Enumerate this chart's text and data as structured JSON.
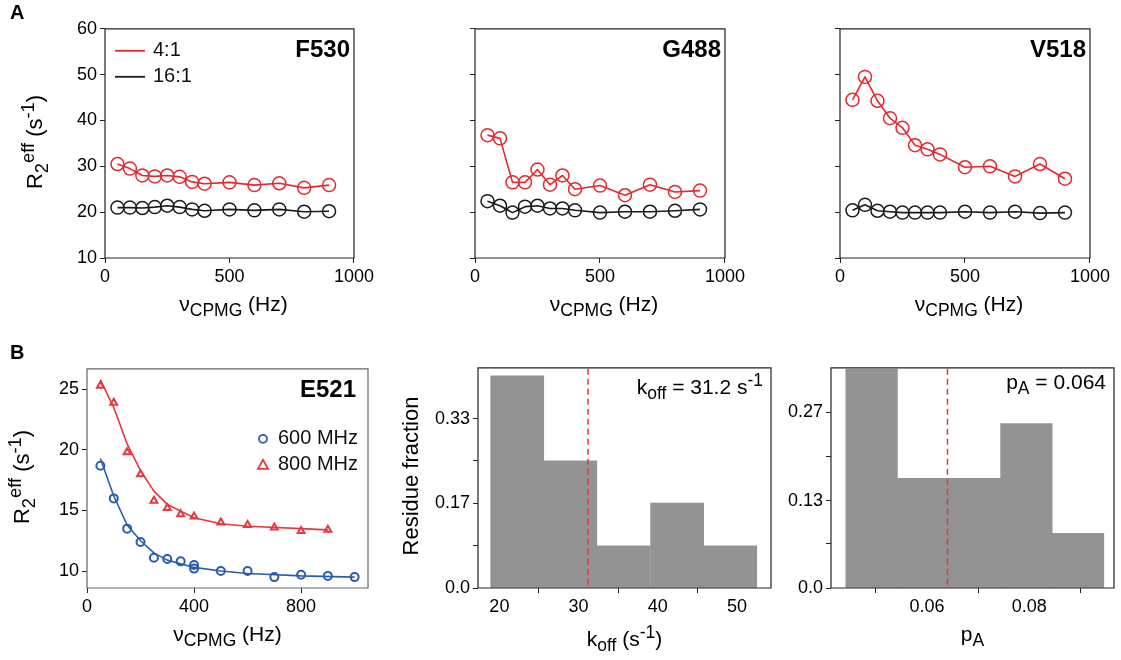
{
  "chart_data": [
    {
      "type": "line",
      "title": "F530",
      "ylabel": "R$_{2}$$^{eff}$ (s$^{-1}$)",
      "xlabel": "ν$_{CPMG}$ (Hz)",
      "annotations": [
        "A"
      ],
      "marker": "circle",
      "legend": "top left",
      "xlim": [
        0,
        1000
      ],
      "xticks": [
        0,
        500,
        1000
      ],
      "ylim": [
        10,
        60
      ],
      "yticks": [
        10,
        20,
        30,
        40,
        50,
        60
      ],
      "x": [
        50,
        100,
        150,
        200,
        250,
        300,
        350,
        400,
        500,
        600,
        700,
        800,
        900
      ],
      "series": [
        {
          "name": "4:1",
          "color": "#e8262d",
          "values": [
            30.5,
            29.5,
            28,
            27.8,
            28,
            27.7,
            26.6,
            26.2,
            26.5,
            25.9,
            26.3,
            25.3,
            25.9
          ]
        },
        {
          "name": "16:1",
          "color": "#1a1a1a",
          "values": [
            21,
            21,
            20.9,
            21.1,
            21.4,
            21.1,
            20.6,
            20.3,
            20.6,
            20.4,
            20.6,
            20.1,
            20.2
          ]
        }
      ]
    },
    {
      "type": "line",
      "title": "G488",
      "xlabel": "ν$_{CPMG}$ (Hz)",
      "marker": "circle",
      "tick_labels": "x",
      "xlim": [
        0,
        1000
      ],
      "xticks": [
        0,
        500,
        1000
      ],
      "ylim": [
        10,
        60
      ],
      "yticks": [
        10,
        20,
        30,
        40,
        50,
        60
      ],
      "x": [
        50,
        100,
        150,
        200,
        250,
        300,
        350,
        400,
        500,
        600,
        700,
        800,
        900
      ],
      "series": [
        {
          "color": "#e8262d",
          "values": [
            36.8,
            36.1,
            26.5,
            26.5,
            29.3,
            26,
            28,
            25,
            25.8,
            23.7,
            26,
            24.4,
            24.7
          ]
        },
        {
          "color": "#1a1a1a",
          "values": [
            22.4,
            21.4,
            19.9,
            21.2,
            21.4,
            20.8,
            20.8,
            20.4,
            19.9,
            20.1,
            20.1,
            20.3,
            20.6
          ]
        }
      ]
    },
    {
      "type": "line",
      "title": "V518",
      "xlabel": "ν$_{CPMG}$ (Hz)",
      "marker": "circle",
      "tick_labels": "x",
      "xlim": [
        0,
        1000
      ],
      "xticks": [
        0,
        500,
        1000
      ],
      "ylim": [
        10,
        60
      ],
      "yticks": [
        10,
        20,
        30,
        40,
        50,
        60
      ],
      "x": [
        50,
        100,
        150,
        200,
        250,
        300,
        350,
        400,
        500,
        600,
        700,
        800,
        900
      ],
      "series": [
        {
          "color": "#e8262d",
          "values": [
            44.5,
            49.5,
            44.3,
            40.5,
            38.4,
            34.6,
            33.7,
            32.6,
            29.8,
            30,
            27.8,
            30.5,
            27.3
          ]
        },
        {
          "color": "#1a1a1a",
          "values": [
            20.4,
            21.6,
            20.3,
            20.1,
            19.9,
            19.9,
            19.9,
            19.9,
            20.1,
            19.9,
            20.1,
            19.8,
            19.9
          ]
        }
      ]
    },
    {
      "type": "scatter",
      "title": "E521",
      "ylabel": "R$_{2}$$^{eff}$ (s$^{-1}$)",
      "xlabel": "ν$_{CPMG}$ (Hz)",
      "annotations": [
        "B"
      ],
      "legend": "top right",
      "xlim": [
        0,
        1050
      ],
      "xticks": [
        0,
        400,
        800
      ],
      "ylim": [
        8.6,
        26.7
      ],
      "yticks": [
        10,
        15,
        20,
        25
      ],
      "series": [
        {
          "name": "600 MHz",
          "color": "#2a5db0",
          "marker": "circle",
          "x": [
            50,
            100,
            150,
            200,
            250,
            300,
            350,
            400,
            400,
            500,
            600,
            700,
            800,
            900,
            1000
          ],
          "values": [
            18.7,
            16,
            13.5,
            12.4,
            11.1,
            11,
            10.8,
            10.5,
            10.2,
            10,
            10,
            9.5,
            9.7,
            9.6,
            9.5
          ]
        },
        {
          "name": "800 MHz",
          "color": "#e8383d",
          "marker": "triangle",
          "x": [
            50,
            100,
            150,
            200,
            250,
            300,
            350,
            400,
            500,
            600,
            700,
            800,
            900
          ],
          "values": [
            25.3,
            23.9,
            19.8,
            18,
            15.8,
            15.2,
            14.7,
            14.5,
            14,
            13.8,
            13.6,
            13.3,
            13.4
          ]
        },
        {
          "type": "line",
          "color": "#2a5db0",
          "marker": "none",
          "x": [
            50,
            100,
            150,
            200,
            250,
            300,
            400,
            500,
            600,
            800,
            1000
          ],
          "values": [
            19.3,
            16.2,
            13.8,
            12.5,
            11.5,
            10.9,
            10.3,
            10,
            9.8,
            9.6,
            9.5
          ]
        },
        {
          "type": "line",
          "color": "#e8383d",
          "marker": "none",
          "x": [
            50,
            100,
            150,
            200,
            250,
            300,
            400,
            500,
            600,
            800,
            900
          ],
          "values": [
            25.8,
            23.5,
            20.5,
            18.3,
            16.6,
            15.5,
            14.4,
            13.9,
            13.7,
            13.5,
            13.4
          ]
        }
      ]
    },
    {
      "type": "histogram",
      "ylabel": "Residue fraction",
      "xlabel": "k$_{off}$ (s$^{-1}$)",
      "annotations": [
        "k$_{off}$ = 31.2 s$^{-1}$"
      ],
      "color": "#939393",
      "bins": [
        18.9,
        25.6,
        32.3,
        39.1,
        45.8,
        52.5
      ],
      "values": [
        0.417,
        0.25,
        0.083,
        0.167,
        0.083
      ],
      "xlim": [
        17.3,
        54.3
      ],
      "xticks": [
        20,
        30,
        40,
        50
      ],
      "ylim": [
        0,
        0.433
      ],
      "yticks": [
        {
          "value": 0,
          "label": "0.0"
        },
        {
          "value": 0.083,
          "label": null
        },
        {
          "value": 0.167,
          "label": "0.17"
        },
        {
          "value": 0.25,
          "label": null
        },
        {
          "value": 0.333,
          "label": "0.33"
        }
      ],
      "ref_lines": [
        {
          "axis": "x",
          "value": 31.2,
          "color": "#e0393e",
          "line_style": "dashed"
        }
      ]
    },
    {
      "type": "histogram",
      "xlabel": "p$_{A}$",
      "annotations": [
        "p$_{A}$ = 0.064"
      ],
      "color": "#939393",
      "bins": [
        0.0441,
        0.0542,
        0.0643,
        0.0744,
        0.0845,
        0.0946
      ],
      "values": [
        0.333,
        0.167,
        0.167,
        0.25,
        0.083
      ],
      "xlim": [
        0.0412,
        0.0966
      ],
      "xticks": [
        0.06,
        0.08
      ],
      "ylim": [
        0,
        0.335
      ],
      "yticks": [
        {
          "value": 0,
          "label": "0.0"
        },
        {
          "value": 0.067,
          "label": null
        },
        {
          "value": 0.133,
          "label": "0.13"
        },
        {
          "value": 0.2,
          "label": null
        },
        {
          "value": 0.267,
          "label": "0.27"
        }
      ],
      "ref_lines": [
        {
          "axis": "x",
          "value": 0.064,
          "color": "#e0393e",
          "line_style": "dashed"
        }
      ]
    }
  ]
}
